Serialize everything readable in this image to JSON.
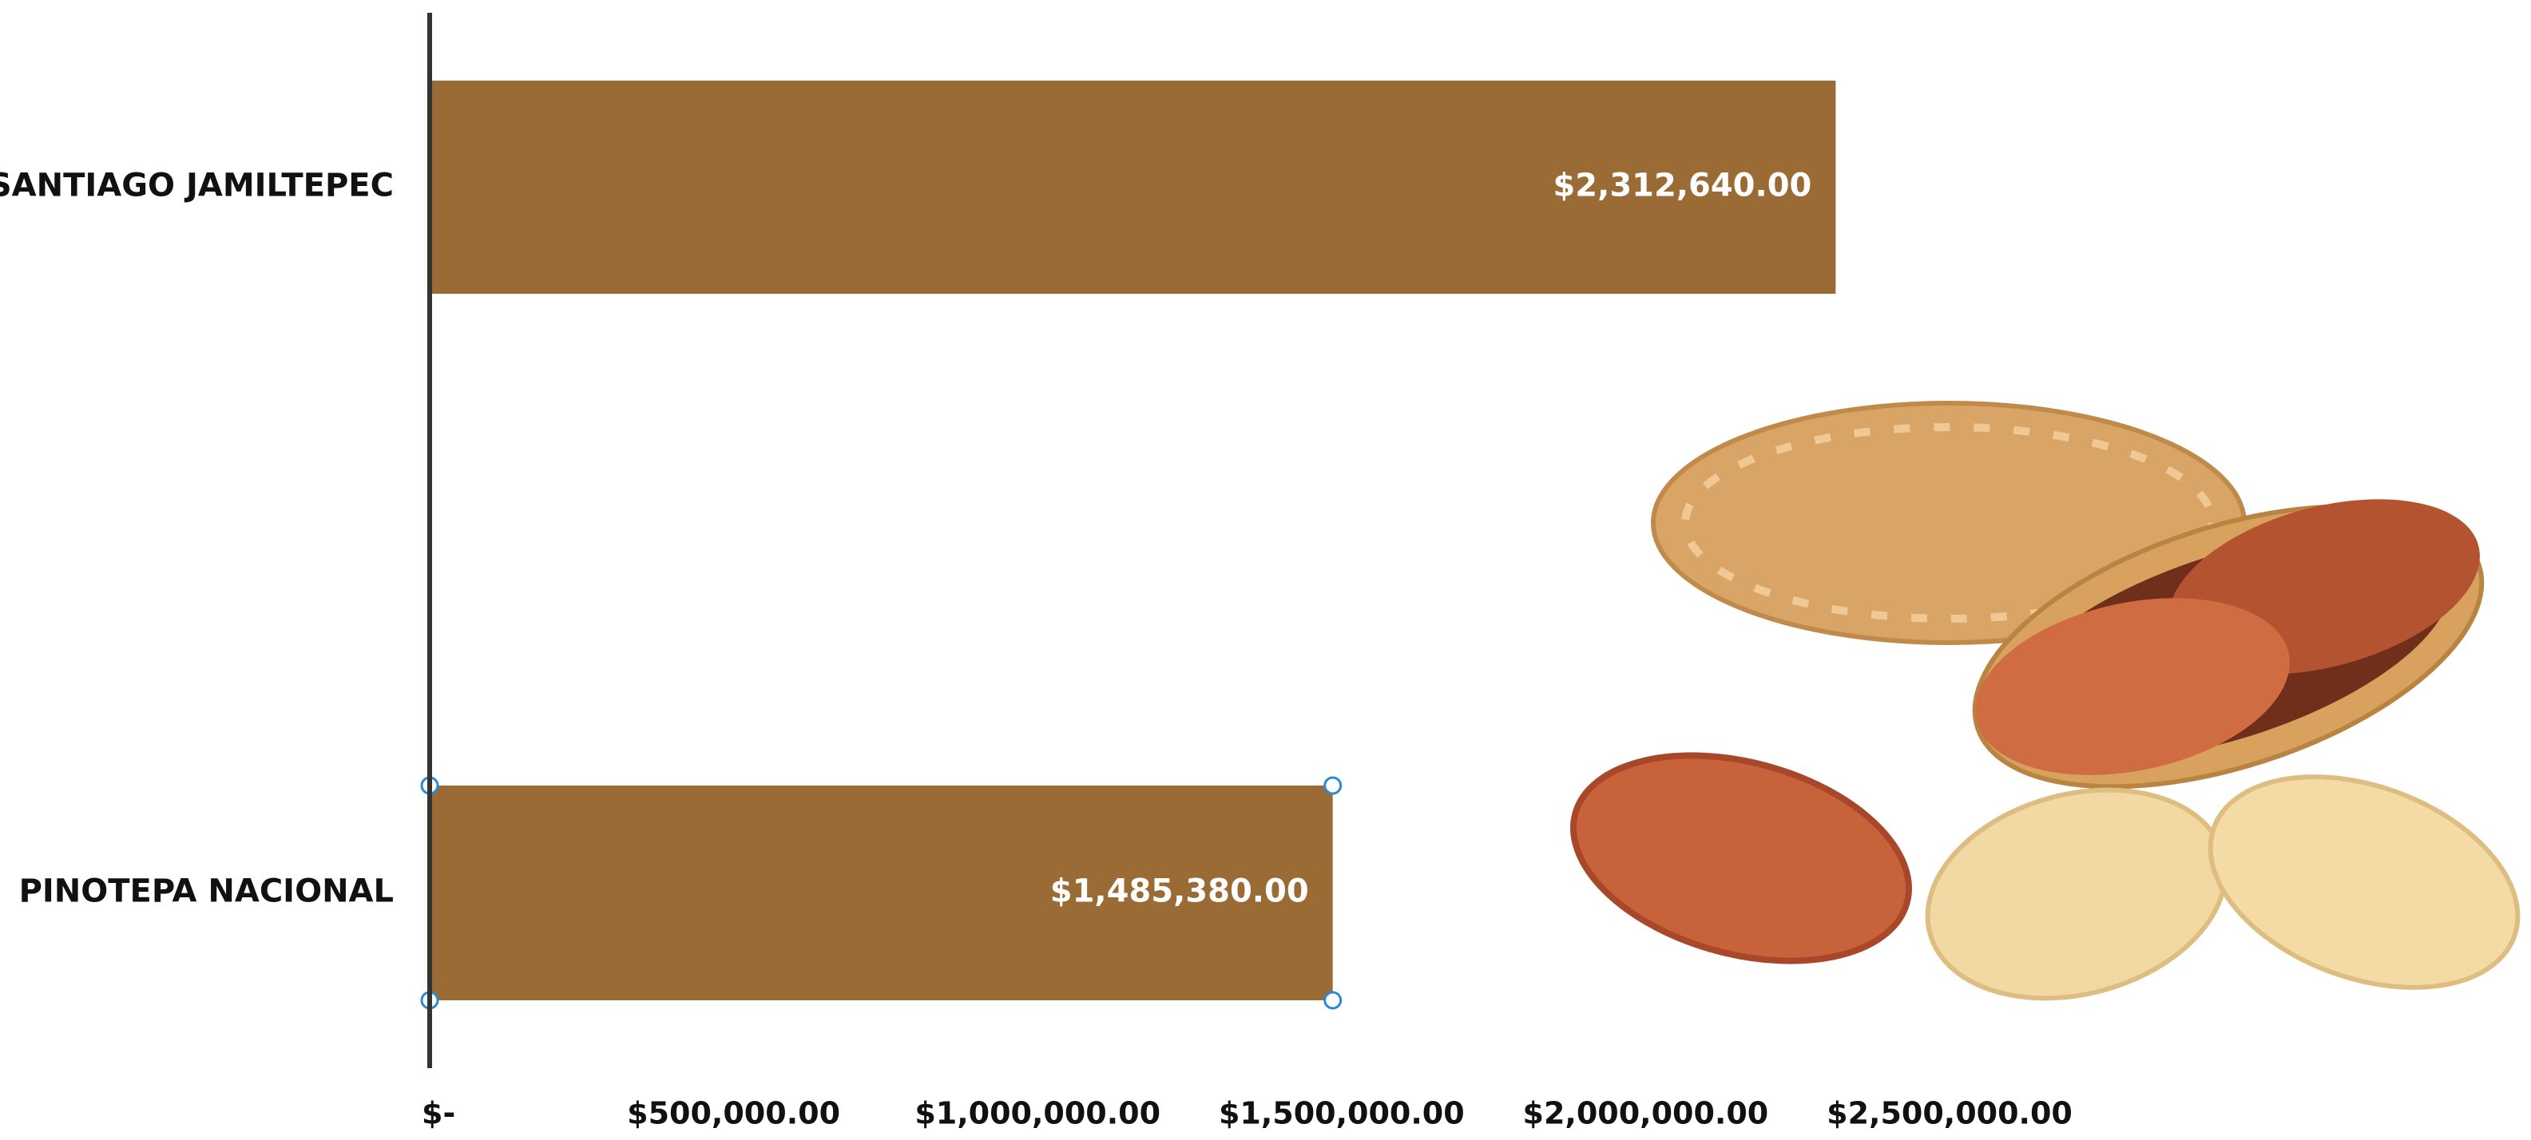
{
  "chart_data": {
    "type": "barh",
    "categories": [
      "SANTIAGO JAMILTEPEC",
      "PINOTEPA NACIONAL"
    ],
    "values": [
      2312640,
      1485380
    ],
    "value_labels": [
      "$2,312,640.00",
      "$1,485,380.00"
    ],
    "color": "#9a6b34",
    "xlim": [
      0,
      2500000
    ],
    "xticks": [
      {
        "value": 0,
        "label": "$-"
      },
      {
        "value": 500000,
        "label": "$500,000.00"
      },
      {
        "value": 1000000,
        "label": "$1,000,000.00"
      },
      {
        "value": 1500000,
        "label": "$1,500,000.00"
      },
      {
        "value": 2000000,
        "label": "$2,000,000.00"
      },
      {
        "value": 2500000,
        "label": "$2,500,000.00"
      }
    ]
  }
}
